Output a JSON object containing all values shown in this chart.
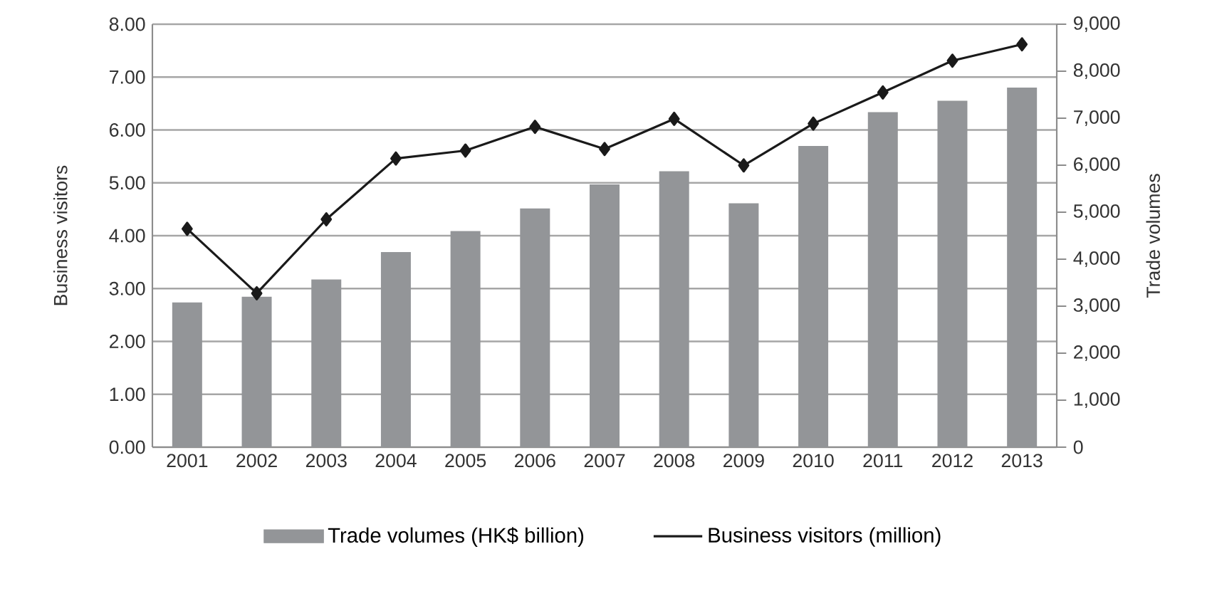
{
  "chart_data": {
    "type": "bar",
    "categories": [
      "2001",
      "2002",
      "2003",
      "2004",
      "2005",
      "2006",
      "2007",
      "2008",
      "2009",
      "2010",
      "2011",
      "2012",
      "2013"
    ],
    "ylabel": "Business visitors",
    "y2label": "Trade volumes",
    "ylim": [
      0,
      8
    ],
    "yticks": [
      {
        "value": 0,
        "label": "0.00"
      },
      {
        "value": 1,
        "label": "1.00"
      },
      {
        "value": 2,
        "label": "2.00"
      },
      {
        "value": 3,
        "label": "3.00"
      },
      {
        "value": 4,
        "label": "4.00"
      },
      {
        "value": 5,
        "label": "5.00"
      },
      {
        "value": 6,
        "label": "6.00"
      },
      {
        "value": 7,
        "label": "7.00"
      },
      {
        "value": 8,
        "label": "8.00"
      }
    ],
    "y2lim": [
      0,
      9000
    ],
    "y2ticks": [
      0,
      {
        "value": 1000,
        "label": "1,000"
      },
      {
        "value": 2000,
        "label": "2,000"
      },
      {
        "value": 3000,
        "label": "3,000"
      },
      {
        "value": 4000,
        "label": "4,000"
      },
      {
        "value": 5000,
        "label": "5,000"
      },
      {
        "value": 6000,
        "label": "6,000"
      },
      {
        "value": 7000,
        "label": "7,000"
      },
      {
        "value": 8000,
        "label": "8,000"
      },
      {
        "value": 9000,
        "label": "9,000"
      }
    ],
    "grid": "y",
    "legend": "bottom",
    "marker": "diamond",
    "series": [
      {
        "name": "Trade volumes (HK$ billion)",
        "axis": "y2",
        "color": "#939598",
        "values": [
          3080,
          3200,
          3570,
          4150,
          4600,
          5080,
          5590,
          5870,
          5190,
          6410,
          7130,
          7370,
          7650
        ]
      },
      {
        "name": "Business visitors (million)",
        "type": "line",
        "color": "#1a1a1a",
        "values": [
          4.13,
          2.91,
          4.31,
          5.46,
          5.61,
          6.06,
          5.64,
          6.21,
          5.33,
          6.12,
          6.71,
          7.31,
          7.62
        ]
      }
    ]
  }
}
